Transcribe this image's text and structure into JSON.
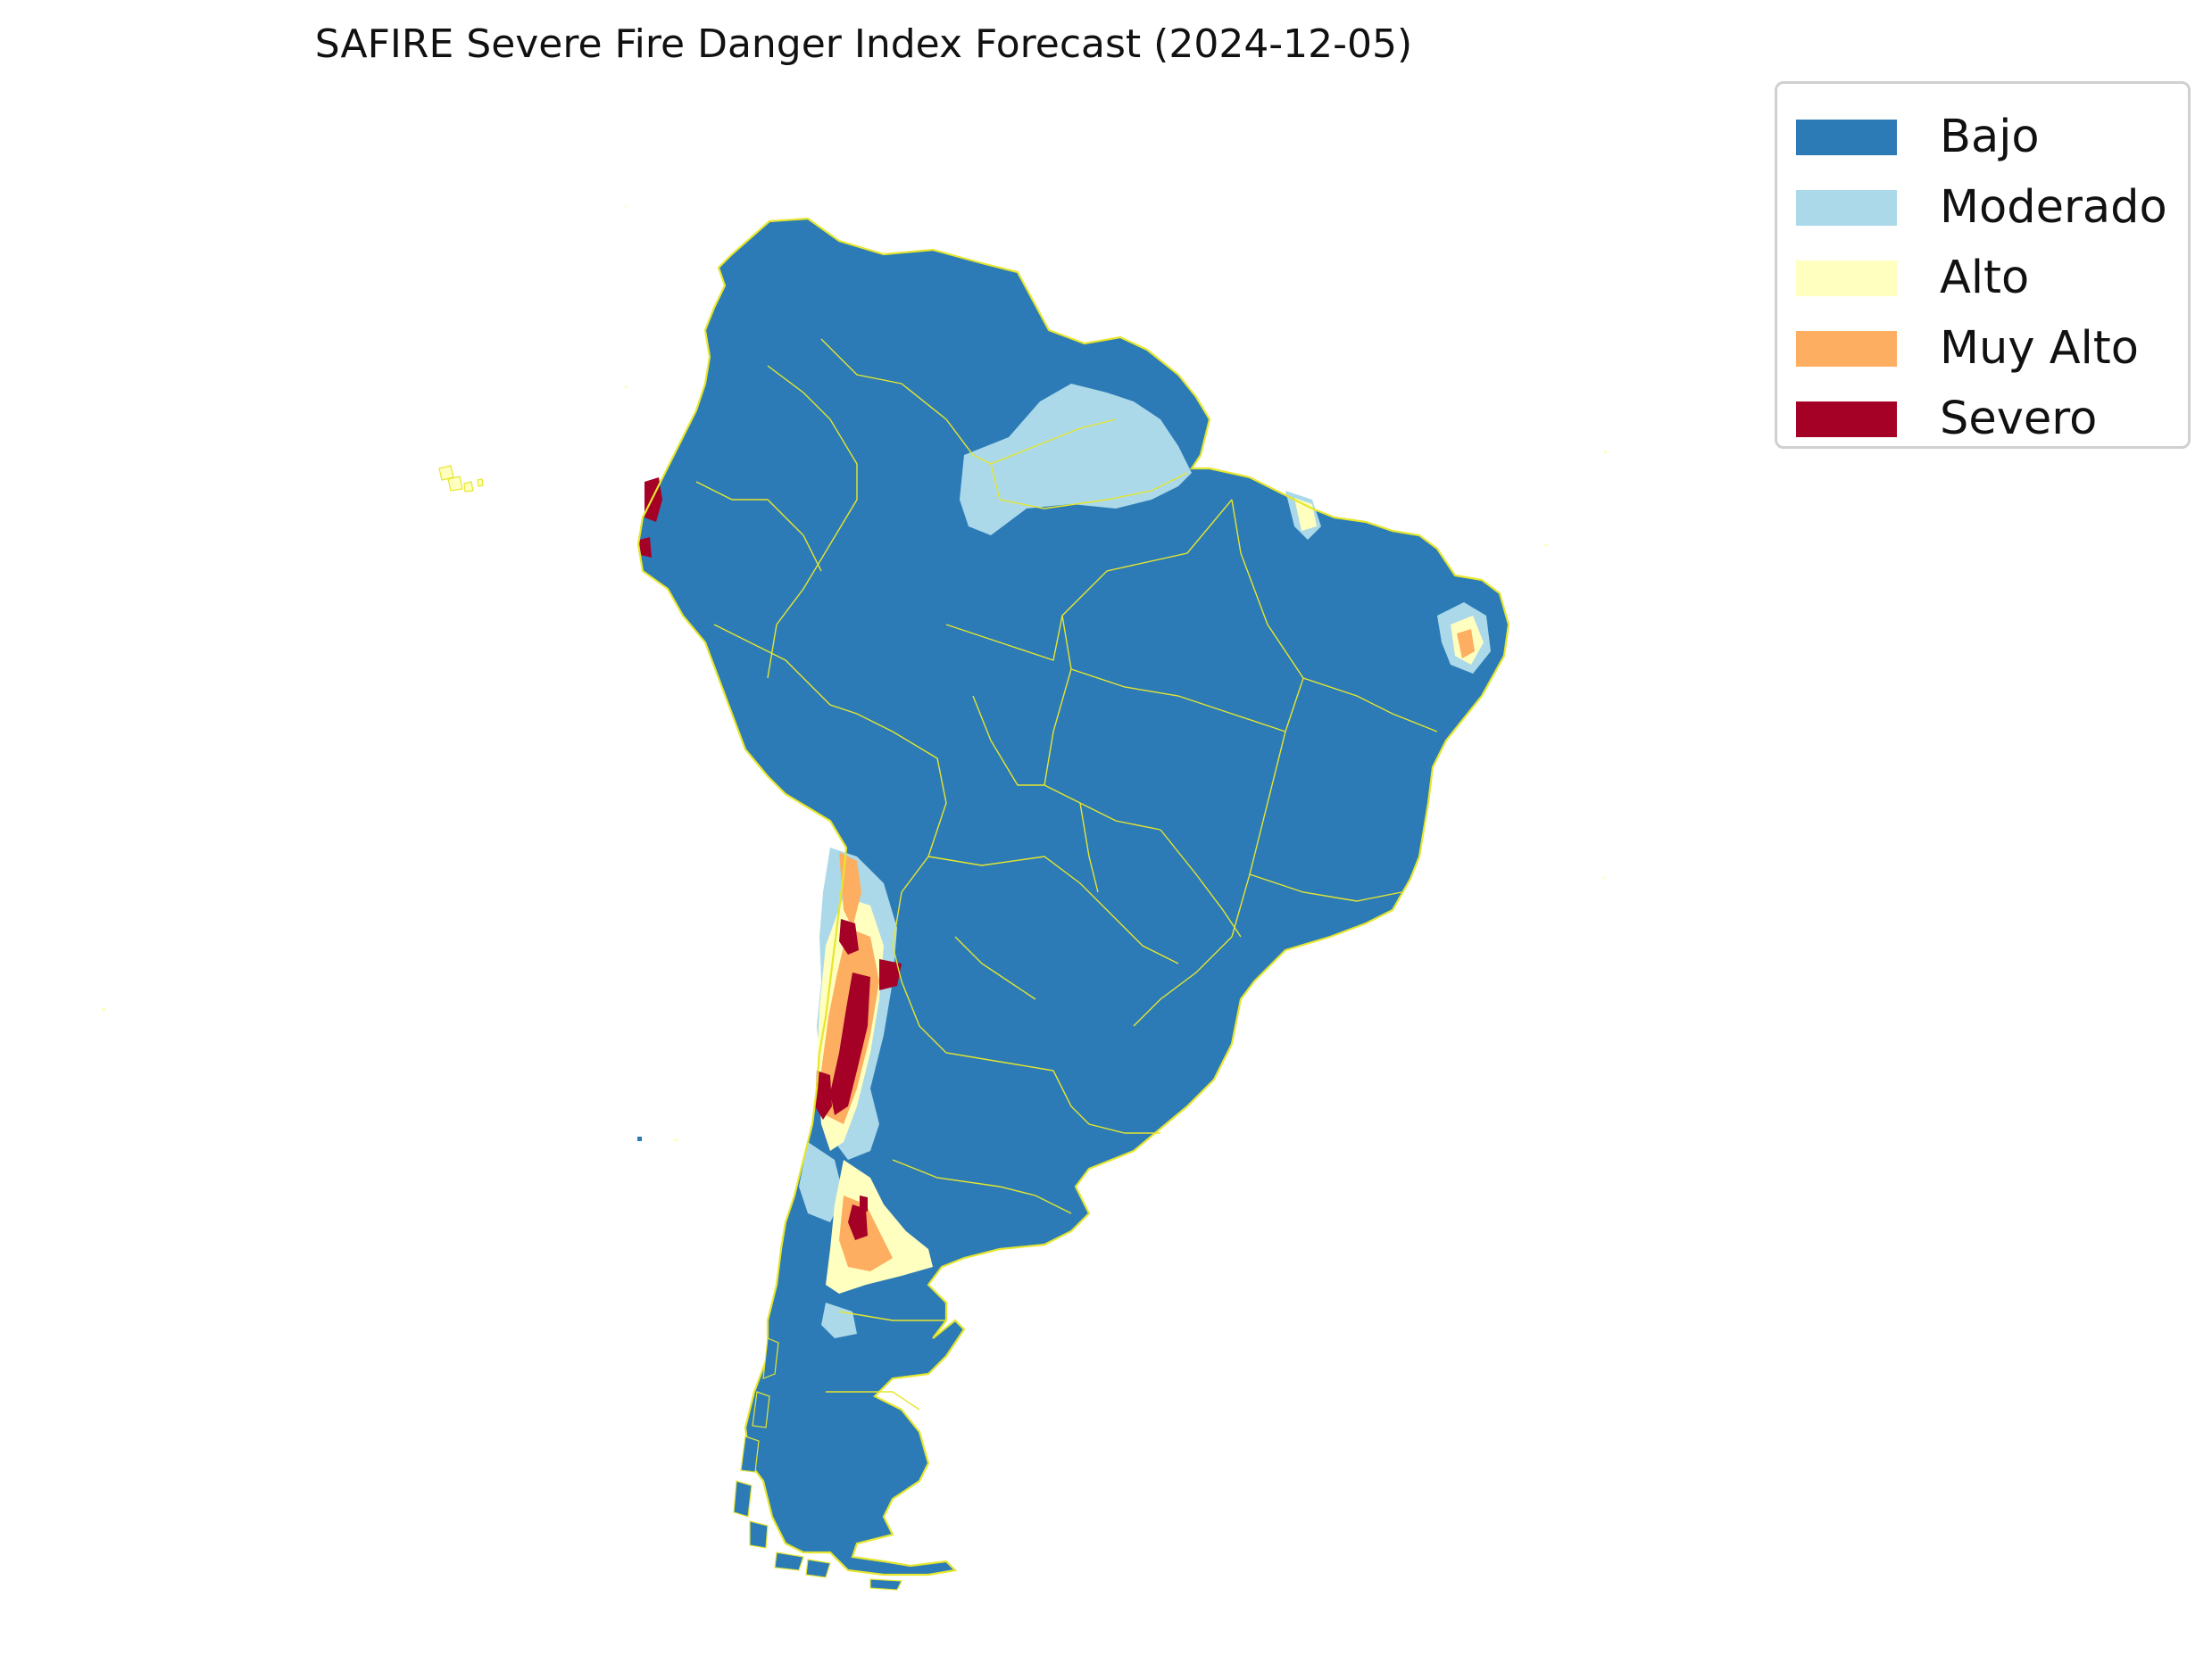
{
  "title": "SAFIRE Severe Fire Danger Index Forecast (2024-12-05)",
  "legend": [
    {
      "label": "Bajo",
      "color": "#2c7bb6"
    },
    {
      "label": "Moderado",
      "color": "#abd9e9"
    },
    {
      "label": "Alto",
      "color": "#ffffbf"
    },
    {
      "label": "Muy Alto",
      "color": "#fdae61"
    },
    {
      "label": "Severo",
      "color": "#a50026"
    }
  ],
  "border_color": "#e6e62e"
}
